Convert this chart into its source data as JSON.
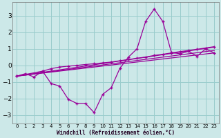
{
  "xlabel": "Windchill (Refroidissement éolien,°C)",
  "bg_color": "#cce8e8",
  "grid_color": "#99cccc",
  "line_color": "#990099",
  "xlim": [
    -0.5,
    23.5
  ],
  "ylim": [
    -3.5,
    3.8
  ],
  "xticks": [
    0,
    1,
    2,
    3,
    4,
    5,
    6,
    7,
    8,
    9,
    10,
    11,
    12,
    13,
    14,
    15,
    16,
    17,
    18,
    19,
    20,
    21,
    22,
    23
  ],
  "yticks": [
    -3,
    -2,
    -1,
    0,
    1,
    2,
    3
  ],
  "series1_x": [
    0,
    1,
    2,
    3,
    4,
    5,
    6,
    7,
    8,
    9,
    10,
    11,
    12,
    13,
    14,
    15,
    16,
    17,
    18,
    19,
    20,
    21,
    22,
    23
  ],
  "series1_y": [
    -0.65,
    -0.5,
    -0.7,
    -0.35,
    -1.1,
    -1.25,
    -2.05,
    -2.3,
    -2.3,
    -2.85,
    -1.75,
    -1.35,
    -0.18,
    0.5,
    1.0,
    2.65,
    3.4,
    2.65,
    0.78,
    0.7,
    0.85,
    0.55,
    1.0,
    0.75
  ],
  "series2_x": [
    0,
    3,
    4,
    5,
    6,
    7,
    8,
    9,
    10,
    11,
    12,
    13,
    14,
    15,
    16,
    17,
    18,
    19,
    20,
    21,
    22,
    23
  ],
  "series2_y": [
    -0.65,
    -0.35,
    -0.2,
    -0.1,
    -0.05,
    0.0,
    0.05,
    0.1,
    0.15,
    0.2,
    0.28,
    0.35,
    0.43,
    0.5,
    0.6,
    0.67,
    0.75,
    0.83,
    0.9,
    0.97,
    1.05,
    1.13
  ],
  "series3_x": [
    0,
    23
  ],
  "series3_y": [
    -0.65,
    0.75
  ],
  "series4_x": [
    0,
    23
  ],
  "series4_y": [
    -0.65,
    0.9
  ],
  "series5_x": [
    0,
    23
  ],
  "series5_y": [
    -0.65,
    1.1
  ]
}
